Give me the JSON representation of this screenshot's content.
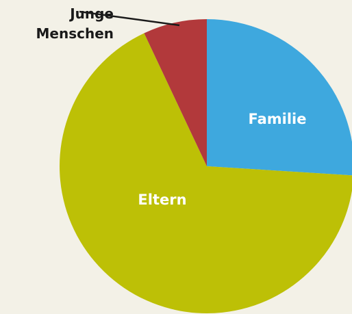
{
  "chart_data": {
    "type": "pie",
    "categories": [
      "Familie",
      "Eltern",
      "Junge Menschen"
    ],
    "values": [
      26,
      67,
      7
    ],
    "colors": [
      "#3ea8de",
      "#bdc006",
      "#b2393b"
    ]
  }
}
